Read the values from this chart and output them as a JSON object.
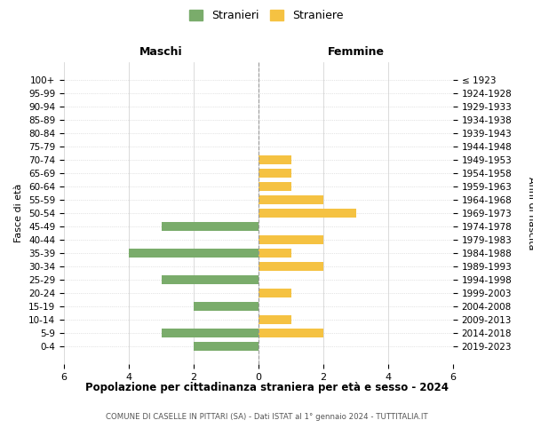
{
  "age_groups": [
    "100+",
    "95-99",
    "90-94",
    "85-89",
    "80-84",
    "75-79",
    "70-74",
    "65-69",
    "60-64",
    "55-59",
    "50-54",
    "45-49",
    "40-44",
    "35-39",
    "30-34",
    "25-29",
    "20-24",
    "15-19",
    "10-14",
    "5-9",
    "0-4"
  ],
  "birth_years": [
    "≤ 1923",
    "1924-1928",
    "1929-1933",
    "1934-1938",
    "1939-1943",
    "1944-1948",
    "1949-1953",
    "1954-1958",
    "1959-1963",
    "1964-1968",
    "1969-1973",
    "1974-1978",
    "1979-1983",
    "1984-1988",
    "1989-1993",
    "1994-1998",
    "1999-2003",
    "2004-2008",
    "2009-2013",
    "2014-2018",
    "2019-2023"
  ],
  "maschi": [
    0,
    0,
    0,
    0,
    0,
    0,
    0,
    0,
    0,
    0,
    0,
    3,
    0,
    4,
    0,
    3,
    0,
    2,
    0,
    3,
    2
  ],
  "femmine": [
    0,
    0,
    0,
    0,
    0,
    0,
    1,
    1,
    1,
    2,
    3,
    0,
    2,
    1,
    2,
    0,
    1,
    0,
    1,
    2,
    0
  ],
  "color_maschi": "#7aac6b",
  "color_femmine": "#f5c242",
  "title_main": "Popolazione per cittadinanza straniera per età e sesso - 2024",
  "title_sub": "COMUNE DI CASELLE IN PITTARI (SA) - Dati ISTAT al 1° gennaio 2024 - TUTTITALIA.IT",
  "header_left": "Maschi",
  "header_right": "Femmine",
  "ylabel_left": "Fasce di età",
  "ylabel_right": "Anni di nascita",
  "legend_maschi": "Stranieri",
  "legend_femmine": "Straniere",
  "xlim": 6,
  "background_color": "#ffffff",
  "grid_color": "#cccccc"
}
